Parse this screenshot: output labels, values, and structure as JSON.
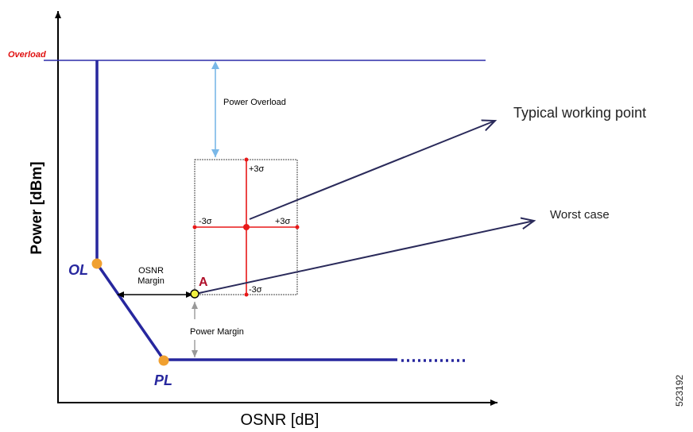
{
  "axes": {
    "y_label": "Power [dBm]",
    "x_label": "OSNR [dB]"
  },
  "overload": {
    "label": "Overload",
    "line_color": "#2b2ba8",
    "label_color": "#e01010"
  },
  "curve": {
    "color": "#27279e",
    "points": [
      {
        "name": "ol-point",
        "label": "OL"
      },
      {
        "name": "pl-point",
        "label": "PL"
      }
    ],
    "point_color": "#f0a030"
  },
  "working_point": {
    "label": "A",
    "label_color": "#b0102a",
    "fill": "#f0f040",
    "sigma_labels": {
      "top": "+3σ",
      "bottom": "-3σ",
      "left": "-3σ",
      "right": "+3σ"
    },
    "cross_color": "#e81818"
  },
  "annotations": {
    "power_overload": "Power Overload",
    "osnr_margin_line1": "OSNR",
    "osnr_margin_line2": "Margin",
    "power_margin": "Power Margin",
    "typical": "Typical working point",
    "worst": "Worst case"
  },
  "figure_id": "523192"
}
